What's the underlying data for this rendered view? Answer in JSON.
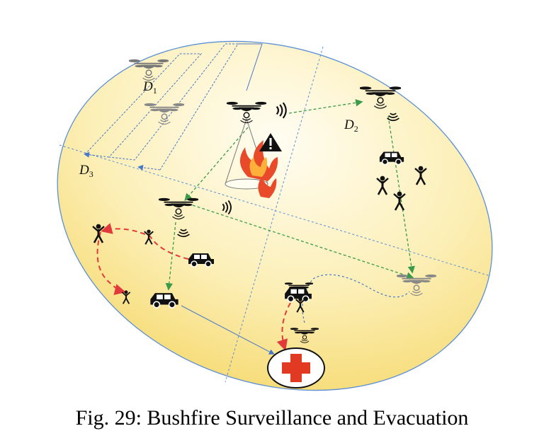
{
  "figure": {
    "caption": "Fig. 29: Bushfire Surveillance and Evacuation",
    "zones": [
      {
        "id": "d1",
        "name": "D",
        "sub": "1"
      },
      {
        "id": "d2",
        "name": "D",
        "sub": "2"
      },
      {
        "id": "d3",
        "name": "D",
        "sub": "3"
      }
    ],
    "icons": [
      "drone-icon",
      "wireless-signal-icon",
      "warning-icon",
      "fire-icon",
      "vehicle-icon",
      "person-icon",
      "medical-cross-icon"
    ],
    "colors": {
      "region_fill_light": "#fffbe8",
      "region_fill_warm": "#f7e07e",
      "boundary": "#5b8fd6",
      "blue_path": "#4a78c8",
      "green_link": "#3a9a4a",
      "red_route": "#e23a3a",
      "medical_red": "#e23a22"
    }
  }
}
